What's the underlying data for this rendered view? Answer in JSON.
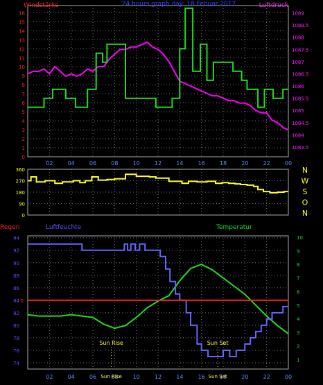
{
  "colors": {
    "wind": "#22dd22",
    "pressure": "#ff00ff",
    "direction": "#ffff22",
    "humidity": "#6666ff",
    "temperature": "#22dd22",
    "rain": "#ff2222",
    "axis_red": "#ff2222",
    "axis_magenta": "#ff22ff",
    "axis_yellow": "#ffff22",
    "axis_blue": "#5555ff",
    "axis_green": "#22dd22",
    "grid": "#777777",
    "frame": "#aaaaaa",
    "time_labels": "#6688ff",
    "sun_labels": "#ffff44"
  },
  "chart_data": [
    {
      "type": "line",
      "title": "24 hours graph day: 18 Febuar 2017",
      "left_label": "Windstärke",
      "right_label": "Luftdruck",
      "x_ticks": [
        "02",
        "04",
        "06",
        "08",
        "10",
        "12",
        "14",
        "16",
        "18",
        "20",
        "22",
        "00"
      ],
      "y_left_ticks": [
        "0",
        "1",
        "2",
        "3",
        "4",
        "5",
        "6",
        "7",
        "8",
        "9",
        "10",
        "11",
        "12",
        "13",
        "14",
        "15",
        "16"
      ],
      "y_right_ticks": [
        "1083.5",
        "1084",
        "1084.5",
        "1085",
        "1085.5",
        "1086",
        "1086.5",
        "1087",
        "1087.5",
        "1088",
        "1088.5",
        "1089"
      ],
      "ylim_left": [
        0,
        16.8
      ],
      "ylim_right": [
        1083.1,
        1089.3
      ],
      "xlim": [
        0,
        24
      ],
      "series": [
        {
          "name": "Windstärke",
          "step": true,
          "x": [
            0,
            1.5,
            2.3,
            3.5,
            4.4,
            5.5,
            6.3,
            6.9,
            7.3,
            9.0,
            11.8,
            13.3,
            14.0,
            14.5,
            15.2,
            15.9,
            16.5,
            17.1,
            18.9,
            19.7,
            20.2,
            21.2,
            21.8,
            22.6,
            23.5,
            24
          ],
          "values": [
            5.5,
            6.5,
            7.5,
            6.5,
            5.5,
            7.5,
            11.5,
            10.5,
            12.5,
            6.5,
            5.5,
            6.5,
            12.0,
            16.5,
            9.5,
            12.5,
            8.5,
            10.5,
            9.5,
            8.5,
            7.5,
            5.5,
            7.5,
            6.5,
            7.5,
            7.5
          ]
        },
        {
          "name": "Luftdruck",
          "x": [
            0,
            0.5,
            1.0,
            1.5,
            2.0,
            2.5,
            3.0,
            3.5,
            4.0,
            4.5,
            5.0,
            5.5,
            6.0,
            6.5,
            7.0,
            7.5,
            8.0,
            8.5,
            9.0,
            9.5,
            10.0,
            10.5,
            11.0,
            11.5,
            12.0,
            12.5,
            13.0,
            13.5,
            14.0,
            14.5,
            15.0,
            15.5,
            16.0,
            16.5,
            17.0,
            17.5,
            18.0,
            18.5,
            19.0,
            19.5,
            20.0,
            20.5,
            21.0,
            21.5,
            22.0,
            22.5,
            23.0,
            23.5,
            24.0
          ],
          "values": [
            1086.5,
            1086.6,
            1086.6,
            1086.7,
            1086.5,
            1086.8,
            1086.6,
            1086.4,
            1086.5,
            1086.4,
            1086.5,
            1086.7,
            1086.6,
            1086.8,
            1086.8,
            1087.1,
            1087.3,
            1087.5,
            1087.5,
            1087.6,
            1087.6,
            1087.7,
            1087.8,
            1087.6,
            1087.5,
            1087.3,
            1087.0,
            1086.6,
            1086.2,
            1086.1,
            1086.0,
            1085.9,
            1085.8,
            1085.7,
            1085.6,
            1085.6,
            1085.5,
            1085.4,
            1085.4,
            1085.3,
            1085.3,
            1085.2,
            1085.0,
            1084.9,
            1084.9,
            1084.6,
            1084.5,
            1084.3,
            1084.2
          ]
        }
      ]
    },
    {
      "type": "line",
      "title": "",
      "right_label_letters": [
        "N",
        "W",
        "S",
        "O",
        "N"
      ],
      "x_ticks": [
        "02",
        "04",
        "06",
        "08",
        "10",
        "12",
        "14",
        "16",
        "18",
        "20",
        "22",
        "00"
      ],
      "y_left_ticks": [
        "0",
        "90",
        "180",
        "270",
        "360"
      ],
      "ylim": [
        0,
        360
      ],
      "xlim": [
        0,
        24
      ],
      "series": [
        {
          "name": "Windrichtung",
          "step": true,
          "x": [
            0,
            0.3,
            0.8,
            1.6,
            2.5,
            3.2,
            4.2,
            4.8,
            5.3,
            5.9,
            6.5,
            7.3,
            8.0,
            9.0,
            10.0,
            11.2,
            11.8,
            13.0,
            14.2,
            14.8,
            15.6,
            16.5,
            17.3,
            17.9,
            18.5,
            19.1,
            19.6,
            20.2,
            20.8,
            21.2,
            21.7,
            22.3,
            23.0,
            23.6,
            24
          ],
          "values": [
            270,
            300,
            260,
            270,
            250,
            260,
            270,
            255,
            270,
            300,
            275,
            280,
            285,
            320,
            305,
            300,
            290,
            265,
            250,
            265,
            260,
            265,
            250,
            255,
            250,
            245,
            240,
            235,
            225,
            200,
            185,
            175,
            180,
            185,
            185
          ]
        }
      ]
    },
    {
      "type": "line",
      "title": "",
      "left_red_label": "Regen",
      "left_label": "Luftfeuchte",
      "right_label": "Temperatur",
      "x_ticks": [
        "02",
        "04",
        "06",
        "08",
        "10",
        "12",
        "14",
        "16",
        "18",
        "20",
        "22",
        "00"
      ],
      "y_left_ticks": [
        "74",
        "76",
        "78",
        "80",
        "82",
        "84",
        "86",
        "88",
        "90",
        "92",
        "94"
      ],
      "y_right_ticks": [
        "1",
        "2",
        "3",
        "4",
        "5",
        "6",
        "7",
        "8",
        "9",
        "10"
      ],
      "rain_tick": "0",
      "ylim_left": [
        73,
        94.3
      ],
      "ylim_right": [
        0.3,
        10.1
      ],
      "xlim": [
        0,
        24
      ],
      "annotations": [
        {
          "label": "Sun Rise",
          "sub": "Sun Rise",
          "x": 7.7
        },
        {
          "label": "Sun Set",
          "sub": "Sun Set",
          "x": 17.5
        }
      ],
      "series": [
        {
          "name": "Luftfeuchte",
          "step": true,
          "x": [
            0,
            5.0,
            8.9,
            9.2,
            9.5,
            9.9,
            10.3,
            10.8,
            11.5,
            12.2,
            12.7,
            13.1,
            13.6,
            14.0,
            14.6,
            15.0,
            15.6,
            16.0,
            16.6,
            17.5,
            18.0,
            18.6,
            19.2,
            20.0,
            20.5,
            21.0,
            21.5,
            22.0,
            22.5,
            23.0,
            23.5,
            24
          ],
          "values": [
            93,
            92,
            93,
            92,
            93,
            92,
            93,
            92,
            92,
            91,
            89,
            87,
            85,
            84,
            82,
            80,
            77,
            76,
            75,
            75,
            76,
            75,
            76,
            77,
            78,
            79,
            80,
            81,
            82,
            82,
            83,
            83
          ]
        },
        {
          "name": "Temperatur",
          "x": [
            0,
            1,
            2,
            3,
            4,
            5,
            6,
            7,
            8,
            9,
            10,
            11,
            12,
            13,
            14,
            15,
            16,
            17,
            18,
            19,
            20,
            21,
            22,
            23,
            24
          ],
          "values": [
            4.3,
            4.2,
            4.2,
            4.2,
            4.3,
            4.2,
            4.1,
            3.6,
            3.3,
            3.5,
            4.1,
            4.8,
            5.3,
            5.7,
            6.8,
            7.7,
            8.0,
            7.6,
            7.0,
            6.4,
            5.8,
            5.0,
            4.2,
            3.5,
            2.9
          ]
        },
        {
          "name": "Regen",
          "x": [
            0,
            24
          ],
          "values": [
            0,
            0
          ],
          "on_axis": "rain"
        }
      ]
    }
  ]
}
